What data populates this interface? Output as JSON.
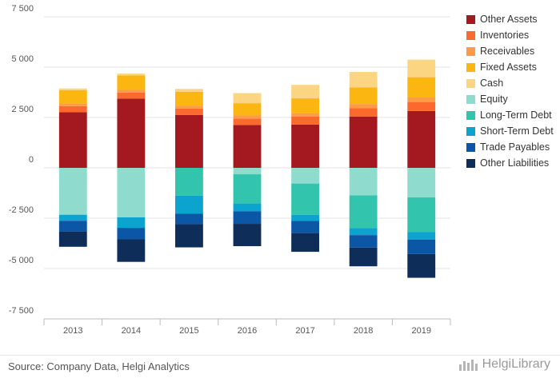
{
  "chart_data": {
    "type": "bar",
    "stacked": true,
    "categories": [
      "2013",
      "2014",
      "2015",
      "2016",
      "2017",
      "2018",
      "2019"
    ],
    "ylim": [
      -7500,
      7500
    ],
    "yticks": [
      7500,
      5000,
      2500,
      0,
      -2500,
      -5000,
      -7500
    ],
    "ytick_labels": [
      "7 500",
      "5 000",
      "2 500",
      "0",
      "-2 500",
      "-5 000",
      "-7 500"
    ],
    "grid": true,
    "legend_position": "right",
    "series": [
      {
        "name": "Other Assets",
        "color": "#a4191f",
        "values": [
          2760,
          3440,
          2620,
          2130,
          2150,
          2550,
          2820
        ]
      },
      {
        "name": "Inventories",
        "color": "#fb6a2c",
        "values": [
          300,
          300,
          320,
          320,
          400,
          420,
          450
        ]
      },
      {
        "name": "Receivables",
        "color": "#fc9b4a",
        "values": [
          130,
          130,
          140,
          150,
          180,
          200,
          220
        ]
      },
      {
        "name": "Fixed Assets",
        "color": "#fbb612",
        "values": [
          670,
          720,
          690,
          610,
          720,
          820,
          1010
        ]
      },
      {
        "name": "Cash",
        "color": "#fcd583",
        "values": [
          80,
          90,
          150,
          500,
          670,
          770,
          870
        ]
      },
      {
        "name": "Equity",
        "color": "#8fdccf",
        "values": [
          -2330,
          -2460,
          0,
          -320,
          -780,
          -1370,
          -1470
        ]
      },
      {
        "name": "Long-Term Debt",
        "color": "#33c4ad",
        "values": [
          0,
          0,
          -1380,
          -1450,
          -1550,
          -1620,
          -1710
        ]
      },
      {
        "name": "Short-Term Debt",
        "color": "#0ca3cf",
        "values": [
          -300,
          -520,
          -890,
          -390,
          -310,
          -350,
          -380
        ]
      },
      {
        "name": "Trade Payables",
        "color": "#0b57a6",
        "values": [
          -530,
          -570,
          -530,
          -620,
          -600,
          -620,
          -720
        ]
      },
      {
        "name": "Other Liabilities",
        "color": "#0e2d58",
        "values": [
          -760,
          -1120,
          -1150,
          -1110,
          -930,
          -930,
          -1180
        ]
      }
    ]
  },
  "footer": {
    "source": "Source: Company Data, Helgi Analytics",
    "logo_text": "HelgiLibrary"
  }
}
